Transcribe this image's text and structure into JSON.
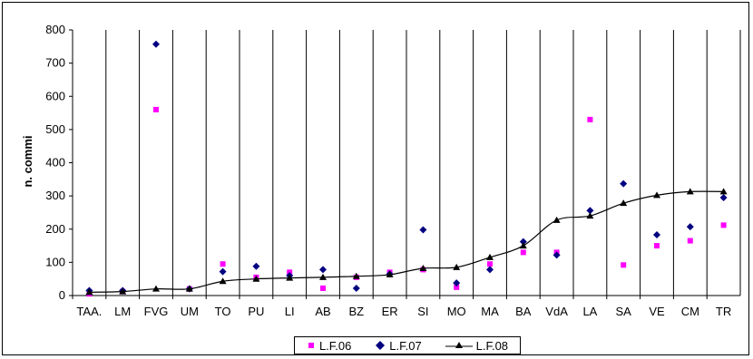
{
  "chart_data": {
    "type": "line",
    "title": "",
    "xlabel": "",
    "ylabel": "n. commi",
    "ylim": [
      0,
      800
    ],
    "yticks": [
      0,
      100,
      200,
      300,
      400,
      500,
      600,
      700,
      800
    ],
    "grid": "vertical",
    "legend_position": "bottom",
    "categories": [
      "TAA.",
      "LM",
      "FVG",
      "UM",
      "TO",
      "PU",
      "LI",
      "AB",
      "BZ",
      "ER",
      "SI",
      "MO",
      "MA",
      "BA",
      "VdA",
      "LA",
      "SA",
      "VE",
      "CM",
      "TR"
    ],
    "series": [
      {
        "name": "L.F.06",
        "style": "markers",
        "marker": "square",
        "color": "#ff00ff",
        "values": [
          5,
          12,
          560,
          20,
          95,
          55,
          70,
          22,
          55,
          70,
          78,
          25,
          95,
          130,
          130,
          530,
          92,
          150,
          165,
          212
        ]
      },
      {
        "name": "L.F.07",
        "style": "markers",
        "marker": "diamond",
        "color": "#000080",
        "values": [
          15,
          15,
          757,
          20,
          72,
          88,
          60,
          78,
          22,
          65,
          198,
          38,
          78,
          162,
          122,
          256,
          337,
          183,
          207,
          295
        ]
      },
      {
        "name": "L.F.08",
        "style": "line",
        "marker": "triangle",
        "color": "#000000",
        "values": [
          10,
          12,
          20,
          20,
          43,
          50,
          53,
          55,
          58,
          63,
          82,
          85,
          115,
          150,
          227,
          240,
          278,
          302,
          313,
          313
        ]
      }
    ]
  }
}
